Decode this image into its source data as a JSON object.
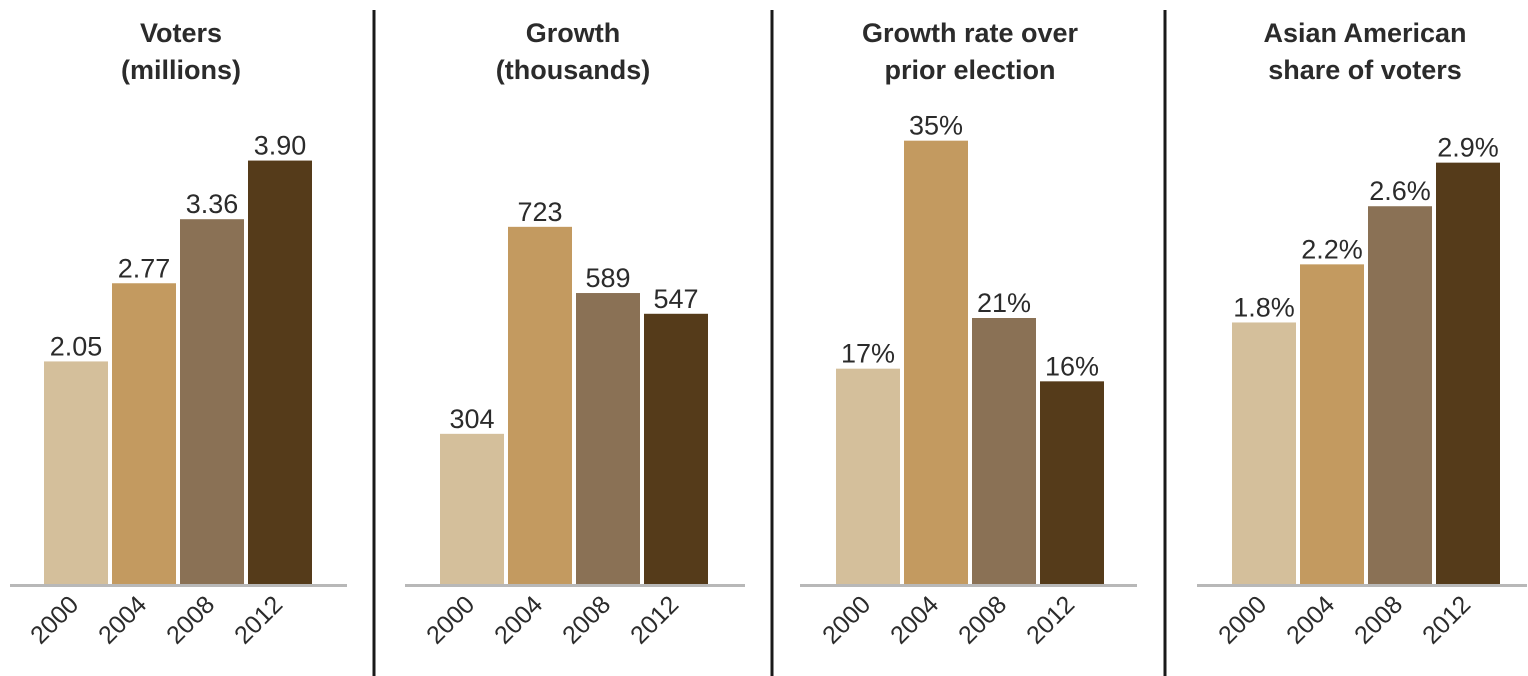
{
  "bar_colors": [
    "#d4bf9b",
    "#c39a60",
    "#8a7155",
    "#553b1a"
  ],
  "chart_data": [
    {
      "type": "bar",
      "title": [
        "Voters",
        "(millions)"
      ],
      "categories": [
        "2000",
        "2004",
        "2008",
        "2012"
      ],
      "values": [
        2.05,
        2.77,
        3.36,
        3.9
      ],
      "labels": [
        "2.05",
        "2.77",
        "3.36",
        "3.90"
      ],
      "ylim": [
        0,
        4.55
      ]
    },
    {
      "type": "bar",
      "title": [
        "Growth",
        "(thousands)"
      ],
      "categories": [
        "2000",
        "2004",
        "2008",
        "2012"
      ],
      "values": [
        304,
        723,
        589,
        547
      ],
      "labels": [
        "304",
        "723",
        "589",
        "547"
      ],
      "ylim": [
        0,
        1000
      ]
    },
    {
      "type": "bar",
      "title": [
        "Growth rate over",
        "prior election"
      ],
      "categories": [
        "2000",
        "2004",
        "2008",
        "2012"
      ],
      "values": [
        17,
        35,
        21,
        16
      ],
      "labels": [
        "17%",
        "35%",
        "21%",
        "16%"
      ],
      "ylim": [
        0,
        39
      ]
    },
    {
      "type": "bar",
      "title": [
        "Asian American",
        "share of voters"
      ],
      "categories": [
        "2000",
        "2004",
        "2008",
        "2012"
      ],
      "values": [
        1.8,
        2.2,
        2.6,
        2.9
      ],
      "labels": [
        "1.8%",
        "2.2%",
        "2.6%",
        "2.9%"
      ],
      "ylim": [
        0,
        3.4
      ]
    }
  ]
}
